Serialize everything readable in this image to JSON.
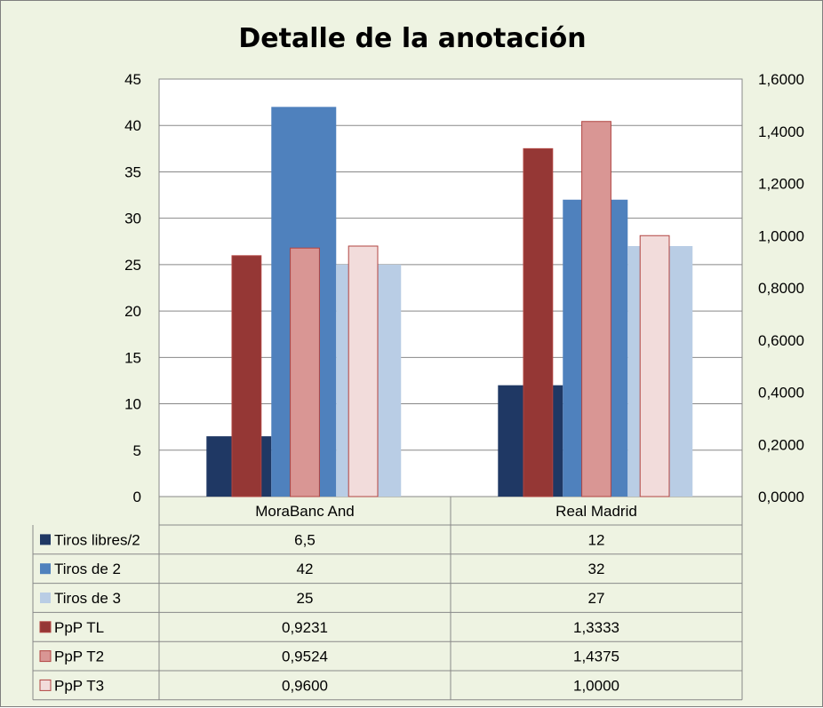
{
  "chart_data": {
    "type": "bar",
    "title": "Detalle de la anotación",
    "categories": [
      "MoraBanc And",
      "Real Madrid"
    ],
    "y_left": {
      "min": 0,
      "max": 45,
      "step": 5,
      "ticks": [
        "0",
        "5",
        "10",
        "15",
        "20",
        "25",
        "30",
        "35",
        "40",
        "45"
      ]
    },
    "y_right": {
      "min": 0,
      "max": 1.6,
      "step": 0.2,
      "ticks": [
        "0,0000",
        "0,2000",
        "0,4000",
        "0,6000",
        "0,8000",
        "1,0000",
        "1,2000",
        "1,4000",
        "1,6000"
      ]
    },
    "grid": true,
    "legend": "data-table",
    "series": [
      {
        "name": "Tiros libres/2",
        "axis": "left",
        "color": "#1f3864",
        "values": [
          6.5,
          12
        ],
        "labels": [
          "6,5",
          "12"
        ]
      },
      {
        "name": "Tiros de 2",
        "axis": "left",
        "color": "#4f81bd",
        "values": [
          42,
          32
        ],
        "labels": [
          "42",
          "32"
        ]
      },
      {
        "name": "Tiros de 3",
        "axis": "left",
        "color": "#b9cde5",
        "values": [
          25,
          27
        ],
        "labels": [
          "25",
          "27"
        ]
      },
      {
        "name": "PpP TL",
        "axis": "right",
        "color": "#953735",
        "values": [
          0.9231,
          1.3333
        ],
        "labels": [
          "0,9231",
          "1,3333"
        ]
      },
      {
        "name": "PpP T2",
        "axis": "right",
        "color": "#d99694",
        "values": [
          0.9524,
          1.4375
        ],
        "labels": [
          "0,9524",
          "1,4375"
        ]
      },
      {
        "name": "PpP T3",
        "axis": "right",
        "color": "#f2dcdb",
        "values": [
          0.96,
          1.0
        ],
        "labels": [
          "0,9600",
          "1,0000"
        ]
      }
    ]
  }
}
